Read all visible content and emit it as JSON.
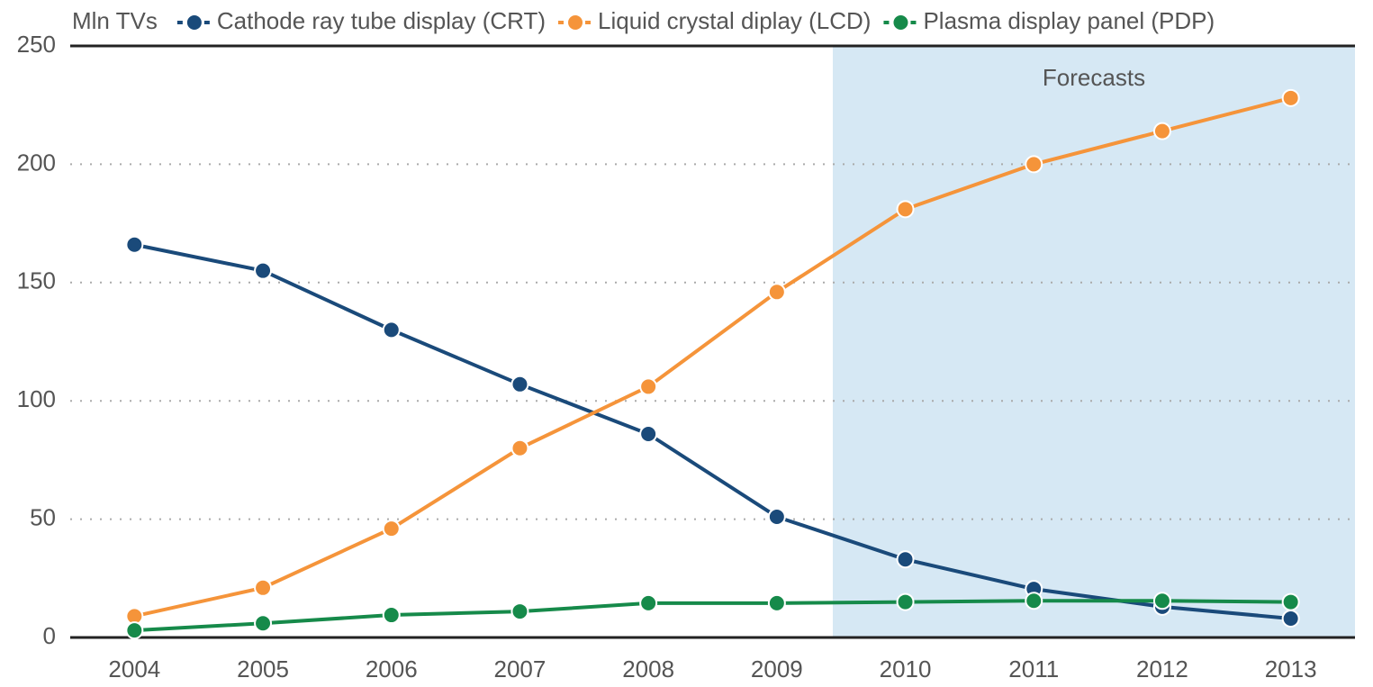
{
  "chart_data": {
    "type": "line",
    "y_label": "Mln TVs",
    "annotation": "Forecasts",
    "categories": [
      "2004",
      "2005",
      "2006",
      "2007",
      "2008",
      "2009",
      "2010",
      "2011",
      "2012",
      "2013"
    ],
    "series": [
      {
        "name": "Cathode ray tube display (CRT)",
        "color": "#1a4a7a",
        "values": [
          166,
          155,
          130,
          107,
          86,
          51,
          33,
          20.5,
          13,
          8
        ]
      },
      {
        "name": "Liquid crystal diplay (LCD)",
        "color": "#f5943a",
        "values": [
          9,
          21,
          46,
          80,
          106,
          146,
          181,
          200,
          214,
          228
        ]
      },
      {
        "name": "Plasma display panel (PDP)",
        "color": "#168a4a",
        "values": [
          3,
          6,
          9.5,
          11,
          14.5,
          14.5,
          15,
          15.5,
          15.5,
          15
        ]
      }
    ],
    "ylim": [
      0,
      250
    ],
    "yticks": [
      0,
      50,
      100,
      150,
      200,
      250
    ],
    "grid": true
  }
}
